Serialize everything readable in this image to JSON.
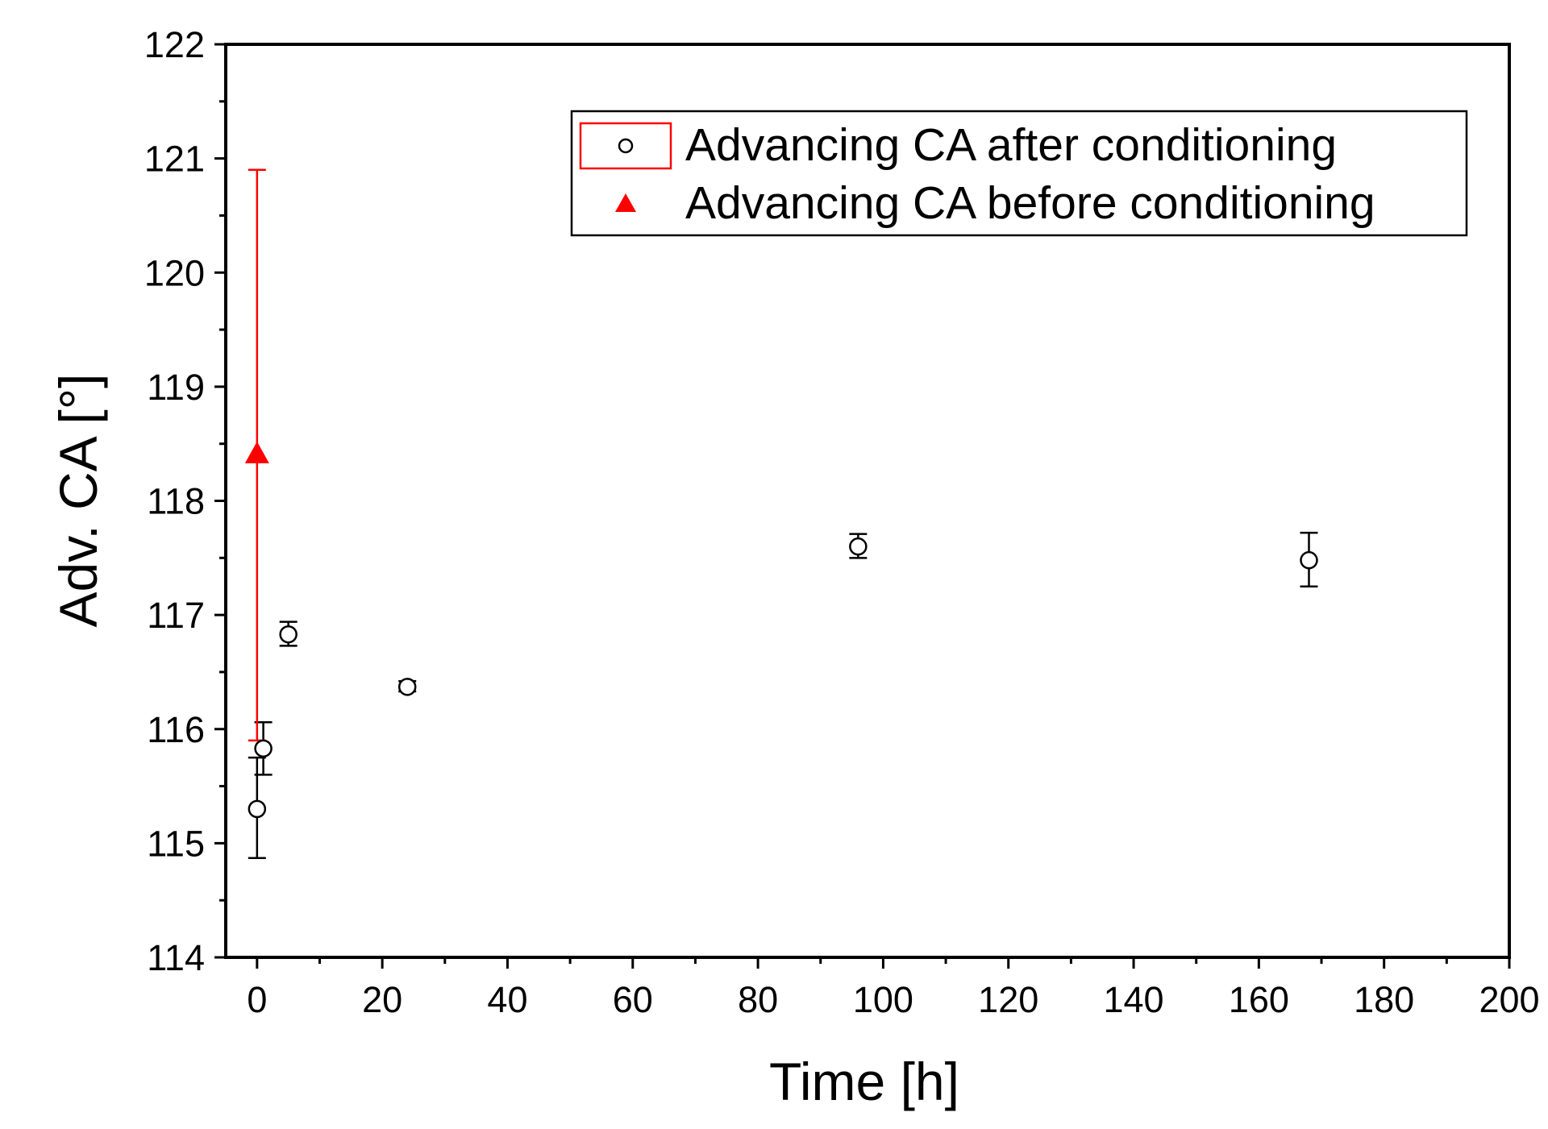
{
  "chart_data": {
    "type": "scatter",
    "title": "",
    "xlabel": "Time [h]",
    "ylabel": "Adv. CA [°]",
    "xlim": [
      -5,
      200
    ],
    "ylim": [
      114,
      122
    ],
    "x_ticks": [
      0,
      20,
      40,
      60,
      80,
      100,
      120,
      140,
      160,
      180,
      200
    ],
    "y_ticks": [
      114,
      115,
      116,
      117,
      118,
      119,
      120,
      121,
      122
    ],
    "x_tick_labels": [
      "0",
      "20",
      "40",
      "60",
      "80",
      "100",
      "120",
      "140",
      "160",
      "180",
      "200"
    ],
    "y_tick_labels": [
      "114",
      "115",
      "116",
      "117",
      "118",
      "119",
      "120",
      "121",
      "122"
    ],
    "grid": false,
    "legend_position": "top-right",
    "series": [
      {
        "name": "Advancing CA after conditioning",
        "marker": "open-circle",
        "color": "#000000",
        "points": [
          {
            "x": 0,
            "y": 115.3,
            "err_low": 114.87,
            "err_high": 115.75
          },
          {
            "x": 1,
            "y": 115.83,
            "err_low": 115.6,
            "err_high": 116.06
          },
          {
            "x": 5,
            "y": 116.83,
            "err_low": 116.73,
            "err_high": 116.94
          },
          {
            "x": 24,
            "y": 116.37,
            "err_low": 116.33,
            "err_high": 116.42
          },
          {
            "x": 96,
            "y": 117.6,
            "err_low": 117.5,
            "err_high": 117.71
          },
          {
            "x": 168,
            "y": 117.48,
            "err_low": 117.25,
            "err_high": 117.72
          }
        ]
      },
      {
        "name": "Advancing CA before conditioning",
        "marker": "filled-triangle",
        "color": "#ff0000",
        "points": [
          {
            "x": 0,
            "y": 118.4,
            "err_low": 115.9,
            "err_high": 120.9
          }
        ]
      }
    ]
  }
}
